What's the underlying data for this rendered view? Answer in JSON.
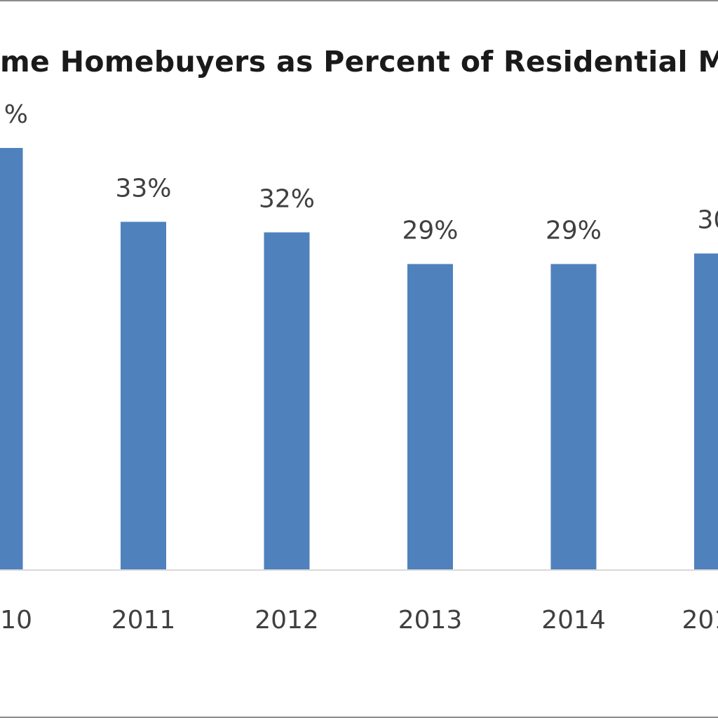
{
  "chart_data": {
    "type": "bar",
    "title": "me Homebuyers as Percent of Residential M",
    "categories": [
      "10",
      "2011",
      "2012",
      "2013",
      "2014",
      "201"
    ],
    "values": [
      40,
      33,
      32,
      29,
      29,
      30
    ],
    "data_labels": [
      "%",
      "33%",
      "32%",
      "29%",
      "29%",
      "30"
    ],
    "xlabel": "",
    "ylabel": "",
    "ylim": [
      0,
      55
    ],
    "grid": false,
    "legend": "none",
    "colors": {
      "bar": "#4f81bd",
      "axis": "#d9d9d9",
      "text": "#404040"
    }
  }
}
